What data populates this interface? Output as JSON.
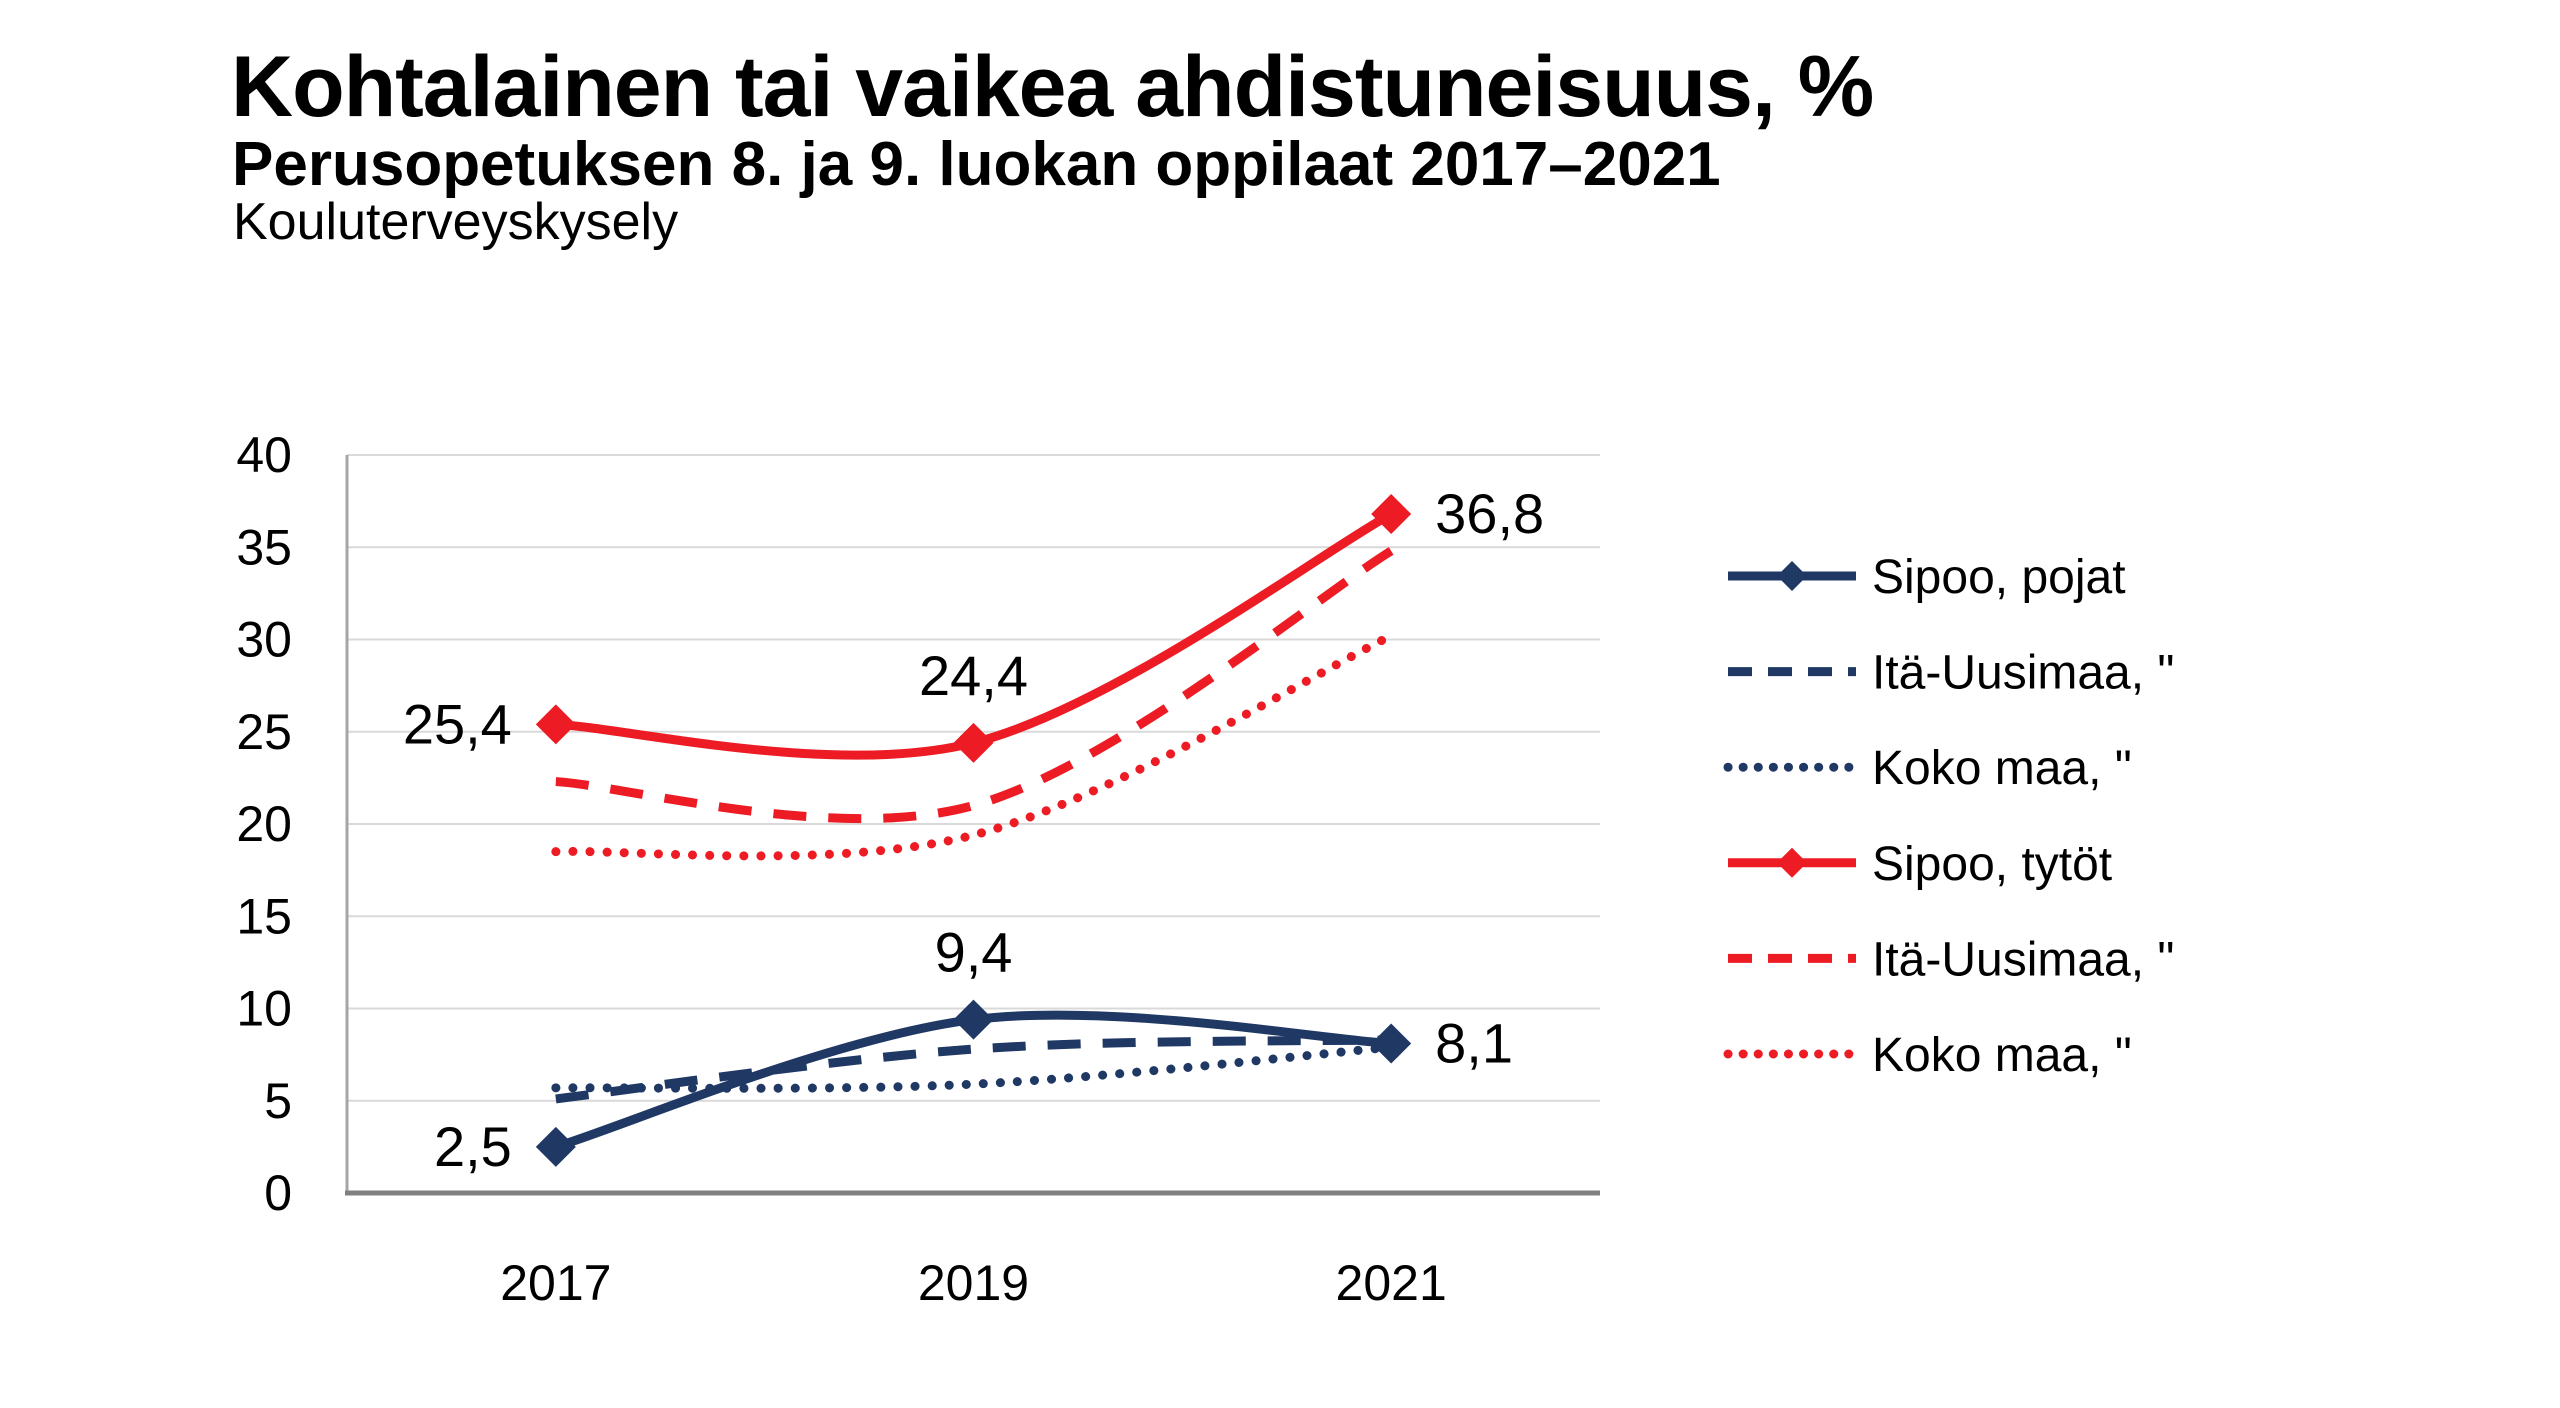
{
  "chart_data": {
    "type": "line",
    "title": "Kohtalainen tai vaikea ahdistuneisuus, %",
    "subtitle": "Perusopetuksen 8. ja 9. luokan oppilaat 2017–2021",
    "source": "Kouluterveyskysely",
    "categories": [
      "2017",
      "2019",
      "2021"
    ],
    "ylim": [
      0,
      40
    ],
    "yticks": [
      0,
      5,
      10,
      15,
      20,
      25,
      30,
      35,
      40
    ],
    "grid": "horizontal",
    "legend_position": "right",
    "decimal_separator": ",",
    "colors": {
      "navy": "#1F3864",
      "red": "#ED1C24"
    },
    "series": [
      {
        "name": "Sipoo, pojat",
        "color": "#1F3864",
        "style": "solid",
        "marker": "diamond",
        "values": [
          2.5,
          9.4,
          8.1
        ],
        "data_labels": [
          "2,5",
          "9,4",
          "8,1"
        ]
      },
      {
        "name": "Itä-Uusimaa, \"",
        "color": "#1F3864",
        "style": "dashed",
        "marker": "none",
        "values": [
          5.1,
          7.8,
          8.3
        ],
        "data_labels": null
      },
      {
        "name": "Koko maa, \"",
        "color": "#1F3864",
        "style": "dotted",
        "marker": "none",
        "values": [
          5.7,
          5.9,
          7.9
        ],
        "data_labels": null
      },
      {
        "name": "Sipoo, tytöt",
        "color": "#ED1C24",
        "style": "solid",
        "marker": "diamond",
        "values": [
          25.4,
          24.4,
          36.8
        ],
        "data_labels": [
          "25,4",
          "24,4",
          "36,8"
        ]
      },
      {
        "name": "Itä-Uusimaa, \"",
        "color": "#ED1C24",
        "style": "dashed",
        "marker": "none",
        "values": [
          22.3,
          21.0,
          34.8
        ],
        "data_labels": null
      },
      {
        "name": "Koko maa, \"",
        "color": "#ED1C24",
        "style": "dotted",
        "marker": "none",
        "values": [
          18.5,
          19.4,
          30.2
        ],
        "data_labels": null
      }
    ]
  }
}
